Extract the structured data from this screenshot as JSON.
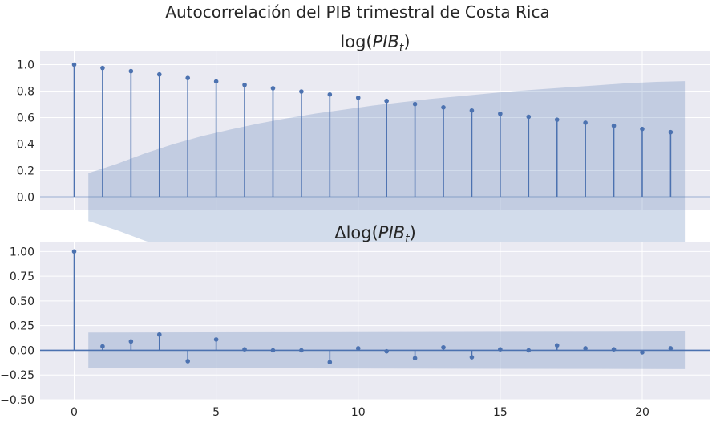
{
  "suptitle": "Autocorrelación del PIB trimestral de Costa Rica",
  "colors": {
    "stem": "#4c72b0",
    "band": "#4c72b0",
    "axes_bg": "#eaeaf2",
    "grid": "#ffffff"
  },
  "chart_data": [
    {
      "type": "stem",
      "title": "log(PIB_t)",
      "title_parts": {
        "prefix": "",
        "func": "log(",
        "var": "PIB",
        "sub": "t",
        "close": ")"
      },
      "xlabel": "",
      "ylabel": "",
      "xlim": [
        -1.2,
        22.4
      ],
      "ylim": [
        -0.1,
        1.1
      ],
      "yticks": [
        0.0,
        0.2,
        0.4,
        0.6,
        0.8,
        1.0
      ],
      "ytick_labels": [
        "0.0",
        "0.2",
        "0.4",
        "0.6",
        "0.8",
        "1.0"
      ],
      "xticks": [
        0,
        5,
        10,
        15,
        20
      ],
      "xtick_labels": [],
      "grid": true,
      "lags": [
        0,
        1,
        2,
        3,
        4,
        5,
        6,
        7,
        8,
        9,
        10,
        11,
        12,
        13,
        14,
        15,
        16,
        17,
        18,
        19,
        20,
        21
      ],
      "values": [
        1.0,
        0.975,
        0.951,
        0.926,
        0.899,
        0.873,
        0.847,
        0.822,
        0.797,
        0.774,
        0.75,
        0.726,
        0.702,
        0.677,
        0.653,
        0.629,
        0.606,
        0.584,
        0.561,
        0.538,
        0.514,
        0.49
      ],
      "confidence_band": {
        "x": [
          0.5,
          1.5,
          2.5,
          3.5,
          4.5,
          5.5,
          6.5,
          7.5,
          8.5,
          9.5,
          10.5,
          11.5,
          12.5,
          13.5,
          14.5,
          15.5,
          16.5,
          17.5,
          18.5,
          19.5,
          20.5,
          21.5
        ],
        "upper": [
          0.18,
          0.25,
          0.33,
          0.4,
          0.46,
          0.51,
          0.555,
          0.595,
          0.63,
          0.66,
          0.69,
          0.715,
          0.74,
          0.76,
          0.78,
          0.8,
          0.815,
          0.83,
          0.845,
          0.86,
          0.87,
          0.875
        ]
      }
    },
    {
      "type": "stem",
      "title": "Δlog(PIB_t)",
      "title_parts": {
        "prefix": "Δ",
        "func": "log(",
        "var": "PIB",
        "sub": "t",
        "close": ")"
      },
      "xlabel": "",
      "ylabel": "",
      "xlim": [
        -1.2,
        22.4
      ],
      "ylim": [
        -0.5,
        1.1
      ],
      "yticks": [
        -0.5,
        -0.25,
        0.0,
        0.25,
        0.5,
        0.75,
        1.0
      ],
      "ytick_labels": [
        "−0.50",
        "−0.25",
        "0.00",
        "0.25",
        "0.50",
        "0.75",
        "1.00"
      ],
      "xticks": [
        0,
        5,
        10,
        15,
        20
      ],
      "xtick_labels": [
        "0",
        "5",
        "10",
        "15",
        "20"
      ],
      "grid": true,
      "lags": [
        0,
        1,
        2,
        3,
        4,
        5,
        6,
        7,
        8,
        9,
        10,
        11,
        12,
        13,
        14,
        15,
        16,
        17,
        18,
        19,
        20,
        21
      ],
      "values": [
        1.0,
        0.04,
        0.09,
        0.16,
        -0.11,
        0.11,
        0.01,
        0.0,
        0.0,
        -0.12,
        0.02,
        -0.01,
        -0.08,
        0.03,
        -0.07,
        0.01,
        0.0,
        0.05,
        0.02,
        0.01,
        -0.02,
        0.02
      ],
      "confidence_band": {
        "x": [
          0.5,
          21.5
        ],
        "upper": [
          0.18,
          0.19
        ]
      }
    }
  ]
}
